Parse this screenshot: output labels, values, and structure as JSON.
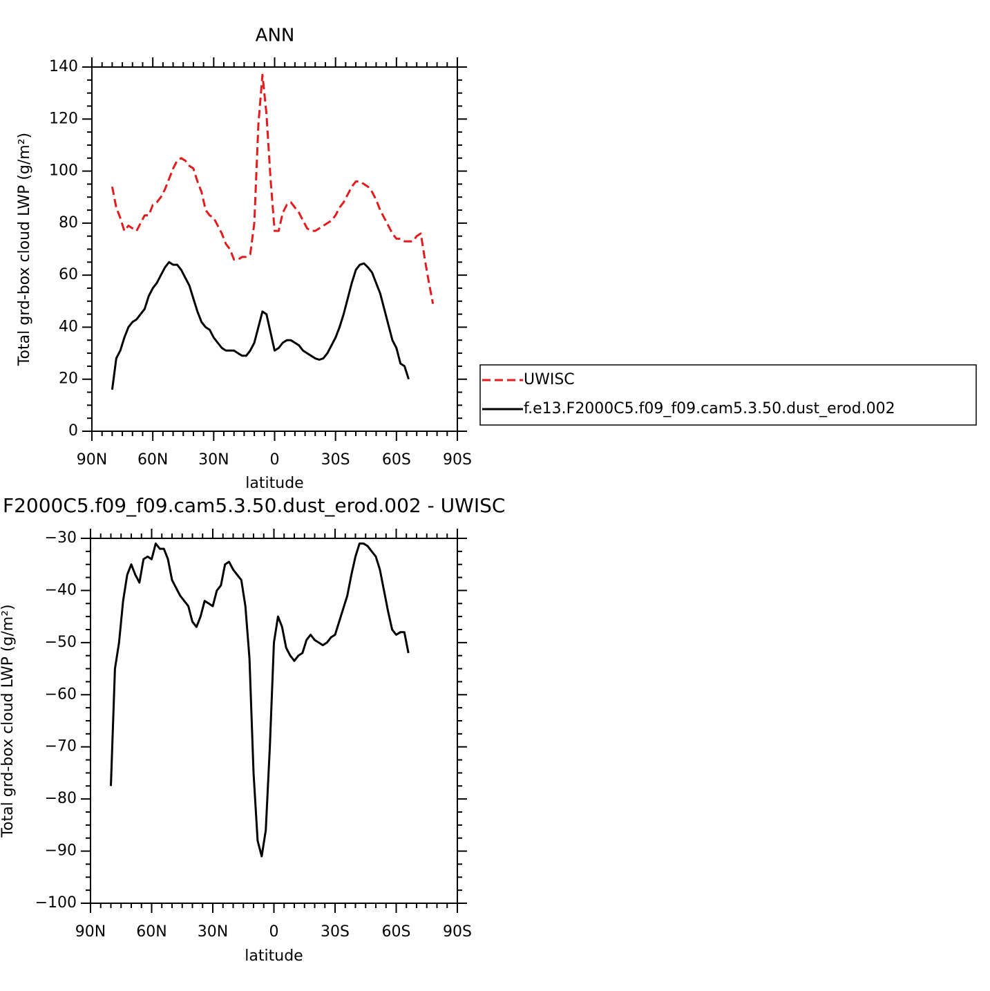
{
  "chart_data": [
    {
      "type": "line",
      "title": "ANN",
      "x_label": "latitude",
      "y_label": "Total grd-box cloud LWP (g/m²)",
      "x": [
        80,
        78,
        76,
        74,
        72,
        70,
        68,
        66,
        64,
        62,
        60,
        58,
        56,
        54,
        52,
        50,
        48,
        46,
        44,
        42,
        40,
        38,
        36,
        34,
        32,
        30,
        28,
        26,
        24,
        22,
        20,
        18,
        16,
        14,
        12,
        10,
        8,
        6,
        4,
        2,
        0,
        -2,
        -4,
        -6,
        -8,
        -10,
        -12,
        -14,
        -16,
        -18,
        -20,
        -22,
        -24,
        -26,
        -28,
        -30,
        -32,
        -34,
        -36,
        -38,
        -40,
        -42,
        -44,
        -46,
        -48,
        -50,
        -52,
        -54,
        -56,
        -58,
        -60,
        -62,
        -64,
        -66,
        -68,
        -70,
        -72,
        -74,
        -76,
        -78
      ],
      "xlim": [
        90,
        -90
      ],
      "xticks": [
        {
          "value": 90,
          "label": "90N"
        },
        {
          "value": 60,
          "label": "60N"
        },
        {
          "value": 30,
          "label": "30N"
        },
        0,
        {
          "value": -30,
          "label": "30S"
        },
        {
          "value": -60,
          "label": "60S"
        },
        {
          "value": -90,
          "label": "90S"
        }
      ],
      "ylim": [
        0,
        140
      ],
      "yticks": [
        0,
        20,
        40,
        60,
        80,
        100,
        120,
        140
      ],
      "legend": "right",
      "series": [
        {
          "name": "UWISC",
          "color": "#e41a1c",
          "dashed": true,
          "values": [
            94,
            86,
            82,
            77,
            79,
            78,
            77,
            80,
            83,
            83,
            87,
            88,
            90,
            93,
            97,
            101,
            104,
            105,
            104,
            102,
            101,
            96,
            92,
            85,
            83,
            82,
            79,
            76,
            72,
            70,
            66,
            66,
            67,
            67,
            68,
            80,
            118,
            137,
            122,
            97,
            77,
            77,
            84,
            87,
            88,
            86,
            84,
            81,
            78,
            77,
            77,
            78,
            79,
            80,
            81,
            83,
            86,
            88,
            91,
            94,
            96,
            96,
            95,
            94,
            92,
            89,
            85,
            82,
            79,
            76,
            74,
            74,
            73,
            73,
            73,
            75,
            76,
            66,
            57,
            49
          ]
        },
        {
          "name": "f.e13.F2000C5.f09_f09.cam5.3.50.dust_erod.002",
          "color": "#000000",
          "dashed": false,
          "values": [
            16,
            28,
            31,
            36,
            40,
            42,
            43,
            45,
            47,
            52,
            55,
            57,
            60,
            63,
            65,
            64,
            64,
            62,
            59,
            56,
            51,
            46,
            42,
            40,
            39,
            36,
            34,
            32,
            31,
            31,
            31,
            30,
            29,
            29,
            31,
            34,
            40,
            46,
            45,
            38,
            31,
            32,
            34,
            35,
            35,
            34,
            33,
            31,
            30,
            29,
            28,
            27.5,
            28,
            30,
            33,
            36,
            40,
            45,
            51,
            57,
            62,
            64,
            64.5,
            63,
            61,
            57,
            53,
            47,
            41,
            35,
            32,
            26,
            25,
            20,
            null,
            null,
            null,
            null,
            null,
            null
          ]
        }
      ]
    },
    {
      "type": "line",
      "title": "F2000C5.f09_f09.cam5.3.50.dust_erod.002 - UWISC",
      "x_label": "latitude",
      "y_label": "Total grd-box cloud LWP (g/m²)",
      "x": [
        80,
        78,
        76,
        74,
        72,
        70,
        68,
        66,
        64,
        62,
        60,
        58,
        56,
        54,
        52,
        50,
        48,
        46,
        44,
        42,
        40,
        38,
        36,
        34,
        32,
        30,
        28,
        26,
        24,
        22,
        20,
        18,
        16,
        14,
        12,
        10,
        8,
        6,
        4,
        2,
        0,
        -2,
        -4,
        -6,
        -8,
        -10,
        -12,
        -14,
        -16,
        -18,
        -20,
        -22,
        -24,
        -26,
        -28,
        -30,
        -32,
        -34,
        -36,
        -38,
        -40,
        -42,
        -44,
        -46,
        -48,
        -50,
        -52,
        -54,
        -56,
        -58,
        -60,
        -62,
        -64,
        -66,
        -68,
        -70,
        -72,
        -74,
        -76,
        -78
      ],
      "xlim": [
        90,
        -90
      ],
      "xticks": [
        {
          "value": 90,
          "label": "90N"
        },
        {
          "value": 60,
          "label": "60N"
        },
        {
          "value": 30,
          "label": "30N"
        },
        0,
        {
          "value": -30,
          "label": "30S"
        },
        {
          "value": -60,
          "label": "60S"
        },
        {
          "value": -90,
          "label": "90S"
        }
      ],
      "ylim": [
        -100,
        -30
      ],
      "yticks": [
        {
          "value": -100,
          "label": "−100"
        },
        {
          "value": -90,
          "label": "−90"
        },
        {
          "value": -80,
          "label": "−80"
        },
        {
          "value": -70,
          "label": "−70"
        },
        {
          "value": -60,
          "label": "−60"
        },
        {
          "value": -50,
          "label": "−50"
        },
        {
          "value": -40,
          "label": "−40"
        },
        {
          "value": -30,
          "label": "−30"
        }
      ],
      "series": [
        {
          "color": "#000000",
          "dashed": false,
          "values": [
            -77.5,
            -55,
            -50,
            -42,
            -37,
            -35,
            -37,
            -38.5,
            -34,
            -33.5,
            -34,
            -31,
            -32,
            -32,
            -34,
            -38,
            -39.5,
            -41,
            -42,
            -43,
            -46,
            -47,
            -45,
            -42,
            -42.5,
            -43,
            -40,
            -39,
            -35,
            -34.5,
            -36,
            -37,
            -38,
            -43,
            -53,
            -75,
            -88,
            -91,
            -86,
            -70,
            -50,
            -45,
            -47,
            -51,
            -52.5,
            -53.5,
            -52.5,
            -52,
            -49.5,
            -48.5,
            -49.5,
            -50,
            -50.5,
            -50,
            -49,
            -48.5,
            -46,
            -43.5,
            -41,
            -37,
            -33.5,
            -31,
            -31,
            -31.5,
            -32.5,
            -33.5,
            -36,
            -40,
            -44,
            -47.5,
            -48.5,
            -48,
            -48,
            -52,
            null,
            null,
            null,
            null,
            null,
            null
          ]
        }
      ]
    }
  ]
}
